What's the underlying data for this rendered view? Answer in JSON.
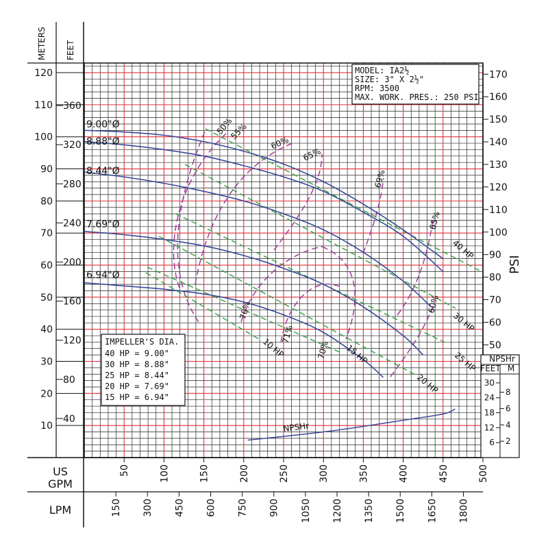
{
  "chart_data": {
    "type": "line",
    "info_box": [
      "MODEL: IA2½",
      "SIZE: 3\" X 2½\"",
      "RPM: 3500",
      "MAX. WORK. PRES.: 250 PSI"
    ],
    "impeller_box": {
      "title": "IMPELLER'S DIA.",
      "rows": [
        "40 HP = 9.00\"",
        "30 HP = 8.88\"",
        "25 HP = 8.44\"",
        "20 HP = 7.69\"",
        "15 HP = 6.94\""
      ]
    },
    "axes": {
      "left_meters": {
        "label": "METERS",
        "ticks": [
          "10",
          "20",
          "30",
          "40",
          "50",
          "60",
          "70",
          "80",
          "90",
          "100",
          "110",
          "120"
        ],
        "range": [
          0,
          123
        ]
      },
      "left_feet": {
        "label": "FEET",
        "ticks": [
          "40",
          "80",
          "120",
          "160",
          "200",
          "240",
          "280",
          "320",
          "360"
        ]
      },
      "right_psi": {
        "label": "PSI",
        "ticks": [
          "50",
          "60",
          "70",
          "80",
          "90",
          "100",
          "110",
          "120",
          "130",
          "140",
          "150",
          "160",
          "170"
        ]
      },
      "npshr": {
        "label": "NPSHr",
        "feet_label": "FEET",
        "meters_label": "M",
        "feet_ticks": [
          "6",
          "12",
          "18",
          "24",
          "30"
        ],
        "meter_ticks": [
          "2",
          "4",
          "6",
          "8"
        ]
      },
      "x_gpm": {
        "label": "US GPM",
        "ticks": [
          "50",
          "100",
          "150",
          "200",
          "250",
          "300",
          "350",
          "400",
          "450",
          "500"
        ],
        "range": [
          0,
          500
        ]
      },
      "x_lpm": {
        "label": "LPM",
        "ticks": [
          "150",
          "300",
          "450",
          "600",
          "750",
          "900",
          "1050",
          "1200",
          "1350",
          "1500",
          "1650",
          "1800"
        ]
      }
    },
    "series": [
      {
        "name": "9.00\"Ø",
        "x": [
          0,
          50,
          100,
          150,
          200,
          250,
          300,
          350,
          400,
          450
        ],
        "y": [
          102,
          101.5,
          100.5,
          98.5,
          95.5,
          91.5,
          86,
          79,
          71,
          62
        ]
      },
      {
        "name": "8.88\"Ø",
        "x": [
          0,
          50,
          100,
          150,
          200,
          250,
          300,
          350,
          400,
          450
        ],
        "y": [
          98.5,
          97.5,
          96,
          94,
          91,
          87.5,
          83,
          76.5,
          69,
          58
        ]
      },
      {
        "name": "8.44\"Ø",
        "x": [
          0,
          50,
          100,
          150,
          200,
          250,
          300,
          350,
          400,
          435
        ],
        "y": [
          89,
          87.5,
          85.5,
          83,
          80,
          76,
          71,
          64,
          55,
          47
        ]
      },
      {
        "name": "7.69\"Ø",
        "x": [
          0,
          50,
          100,
          150,
          200,
          250,
          300,
          350,
          400,
          425
        ],
        "y": [
          70.5,
          69.5,
          68,
          66,
          63,
          59,
          54,
          47,
          38,
          32
        ]
      },
      {
        "name": "6.94\"Ø",
        "x": [
          0,
          50,
          100,
          150,
          200,
          250,
          300,
          350,
          375
        ],
        "y": [
          54.5,
          53.5,
          52.5,
          51,
          48.5,
          44.5,
          39,
          30.5,
          25
        ]
      }
    ],
    "npshr_curve": {
      "name": "NPSHr",
      "x": [
        205,
        250,
        300,
        350,
        400,
        450,
        465
      ],
      "y": [
        7,
        8.5,
        10.3,
        12.5,
        15,
        17.5,
        19.5
      ]
    },
    "efficiency_labels": [
      "50%",
      "55%",
      "60%",
      "65%",
      "69%",
      "65%",
      "60%",
      "70%",
      "71%",
      "70%"
    ],
    "hp_labels": [
      "40 HP",
      "30 HP",
      "25 HP",
      "20 HP",
      "15 HP",
      "10 HP"
    ]
  }
}
